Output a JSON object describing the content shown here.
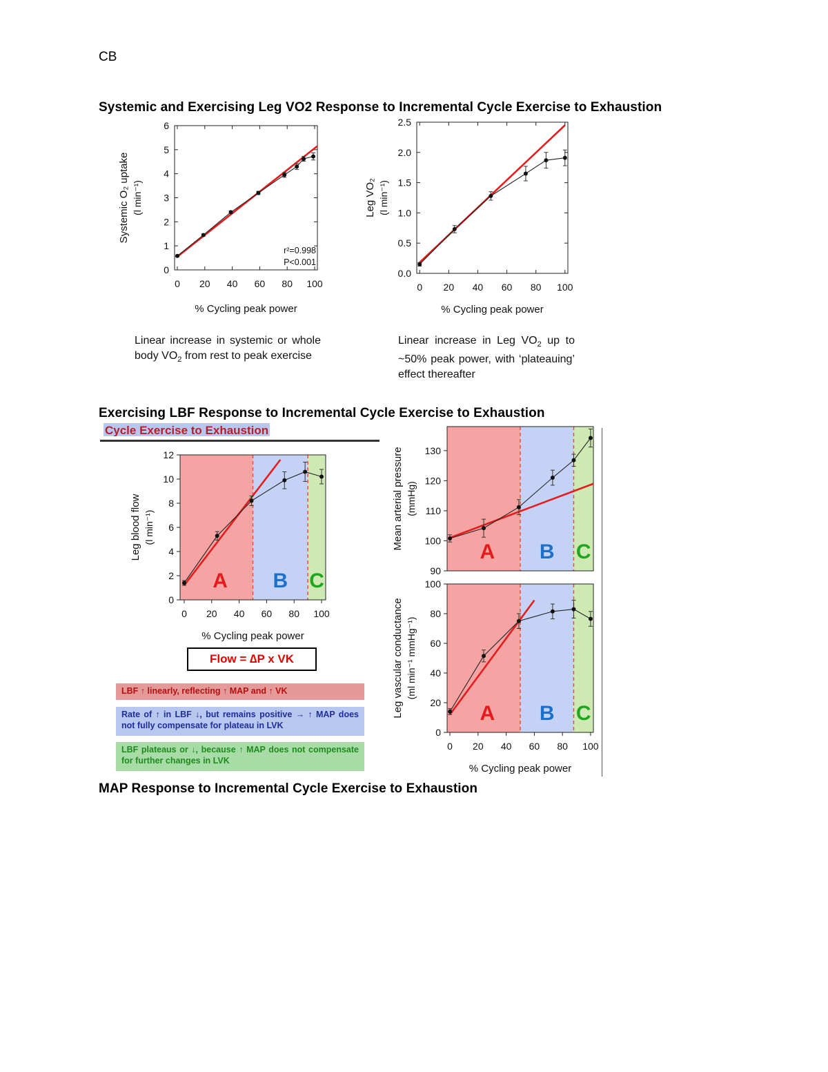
{
  "header": {
    "initials": "CB"
  },
  "headings": {
    "vo2": "Systemic and Exercising Leg VO2 Response to Incremental Cycle Exercise to Exhaustion",
    "lbf": "Exercising LBF Response to Incremental Cycle Exercise to Exhaustion",
    "map": "MAP Response to Incremental Cycle Exercise to Exhaustion"
  },
  "captions": {
    "systemic_pre": "Linear increase in systemic or whole body VO",
    "systemic_sub": "2",
    "systemic_post": " from rest to peak exercise",
    "leg_pre": "Linear increase in Leg VO",
    "leg_sub": "2",
    "leg_post": " up to ~50% peak power, with ‘plateauing’ effect thereafter"
  },
  "slide": {
    "title_fragment": "Cycle Exercise to Exhaustion",
    "equation": "Flow = ∆P x VK",
    "band_a": "LBF ↑ linearly, reflecting ↑ MAP and ↑ VK",
    "band_b": "Rate of ↑ in LBF ↓, but remains positive → ↑ MAP does not fully compensate for plateau in LVK",
    "band_c": "LBF plateaus or ↓, because ↑ MAP does not compensate for further changes in LVK"
  },
  "colors": {
    "fit_line": "#e31d1d",
    "data_line": "#222222",
    "zone_a": "#f6a3a3",
    "zone_b": "#c4d3f5",
    "zone_c": "#cfe9b4",
    "zone_label_a": "#e21b1b",
    "zone_label_b": "#1d70c9",
    "zone_label_c": "#1fa61f"
  },
  "chart_data": [
    {
      "id": "systemic",
      "type": "line",
      "xlabel": "% Cycling peak power",
      "ylabel_line1": "Systemic O₂ uptake",
      "ylabel_line2": "(l min⁻¹)",
      "xlim": [
        -2,
        102
      ],
      "ylim": [
        0,
        6
      ],
      "xticks": [
        "0",
        "20",
        "40",
        "60",
        "80",
        "100"
      ],
      "xtick_values": [
        0,
        20,
        40,
        60,
        80,
        100
      ],
      "yticks": [
        "0",
        "1",
        "2",
        "3",
        "4",
        "5",
        "6"
      ],
      "ytick_values": [
        0,
        1,
        2,
        3,
        4,
        5,
        6
      ],
      "series": [
        {
          "name": "Systemic VO2",
          "x": [
            0,
            19,
            39,
            59,
            78,
            87,
            92,
            99
          ],
          "y": [
            0.58,
            1.45,
            2.4,
            3.2,
            3.95,
            4.3,
            4.62,
            4.72
          ],
          "err": [
            0.03,
            0.05,
            0.05,
            0.07,
            0.1,
            0.12,
            0.1,
            0.15
          ]
        }
      ],
      "fit": {
        "x": [
          0,
          102
        ],
        "y": [
          0.55,
          5.15
        ]
      },
      "stats_line1": "r²=0.998",
      "stats_line2": "P<0.001"
    },
    {
      "id": "leg_vo2",
      "type": "line",
      "xlabel": "% Cycling peak power",
      "ylabel_line1": "Leg VO₂",
      "ylabel_line2": "(l min⁻¹)",
      "xlim": [
        -2,
        102
      ],
      "ylim": [
        0,
        2.5
      ],
      "xticks": [
        "0",
        "20",
        "40",
        "60",
        "80",
        "100"
      ],
      "xtick_values": [
        0,
        20,
        40,
        60,
        80,
        100
      ],
      "yticks": [
        "0.0",
        "0.5",
        "1.0",
        "1.5",
        "2.0",
        "2.5"
      ],
      "ytick_values": [
        0,
        0.5,
        1.0,
        1.5,
        2.0,
        2.5
      ],
      "series": [
        {
          "name": "Leg VO2",
          "x": [
            0,
            24,
            49,
            73,
            87,
            100
          ],
          "y": [
            0.15,
            0.73,
            1.28,
            1.65,
            1.87,
            1.91
          ],
          "err": [
            0.03,
            0.06,
            0.07,
            0.12,
            0.13,
            0.13
          ]
        }
      ],
      "fit": {
        "x": [
          0,
          100
        ],
        "y": [
          0.18,
          2.45
        ]
      }
    },
    {
      "id": "lbf",
      "type": "line",
      "xlabel": "% Cycling peak power",
      "ylabel_line1": "Leg blood flow",
      "ylabel_line2": "(l min⁻¹)",
      "xlim": [
        -3,
        103
      ],
      "ylim": [
        0,
        12
      ],
      "xticks": [
        "0",
        "20",
        "40",
        "60",
        "80",
        "100"
      ],
      "xtick_values": [
        0,
        20,
        40,
        60,
        80,
        100
      ],
      "yticks": [
        "0",
        "2",
        "4",
        "6",
        "8",
        "10",
        "12"
      ],
      "ytick_values": [
        0,
        2,
        4,
        6,
        8,
        10,
        12
      ],
      "zones": [
        {
          "label": "A",
          "from": -3,
          "to": 50
        },
        {
          "label": "B",
          "from": 50,
          "to": 90
        },
        {
          "label": "C",
          "from": 90,
          "to": 103
        }
      ],
      "series": [
        {
          "name": "LBF",
          "x": [
            0,
            24,
            49,
            73,
            88,
            100
          ],
          "y": [
            1.4,
            5.3,
            8.2,
            9.9,
            10.6,
            10.2
          ],
          "err": [
            0.2,
            0.35,
            0.4,
            0.7,
            0.8,
            0.6
          ]
        }
      ],
      "fit": {
        "x": [
          0,
          70
        ],
        "y": [
          1.2,
          11.6
        ]
      }
    },
    {
      "id": "map",
      "type": "line",
      "xlabel": "",
      "ylabel_line1": "Mean arterial pressure",
      "ylabel_line2": "(mmHg)",
      "xlim": [
        -2,
        102
      ],
      "ylim": [
        90,
        138
      ],
      "xticks": [],
      "xtick_values": [],
      "yticks": [
        "90",
        "100",
        "110",
        "120",
        "130"
      ],
      "ytick_values": [
        90,
        100,
        110,
        120,
        130
      ],
      "zones": [
        {
          "label": "A",
          "from": -2,
          "to": 50
        },
        {
          "label": "B",
          "from": 50,
          "to": 88
        },
        {
          "label": "C",
          "from": 88,
          "to": 102
        }
      ],
      "series": [
        {
          "name": "MAP",
          "x": [
            0,
            24,
            49,
            73,
            88,
            100
          ],
          "y": [
            100.8,
            104.2,
            111.2,
            121,
            126.8,
            134.2
          ],
          "err": [
            1.2,
            3,
            2.5,
            2.5,
            2,
            3
          ]
        }
      ],
      "fit": {
        "x": [
          0,
          102
        ],
        "y": [
          101,
          119
        ]
      }
    },
    {
      "id": "lvc",
      "type": "line",
      "xlabel": "% Cycling peak power",
      "ylabel_line1": "Leg vascular conductance",
      "ylabel_line2": "(ml min⁻¹ mmHg⁻¹)",
      "xlim": [
        -2,
        102
      ],
      "ylim": [
        0,
        100
      ],
      "xticks": [
        "0",
        "20",
        "40",
        "60",
        "80",
        "100"
      ],
      "xtick_values": [
        0,
        20,
        40,
        60,
        80,
        100
      ],
      "yticks": [
        "0",
        "20",
        "40",
        "60",
        "80",
        "100"
      ],
      "ytick_values": [
        0,
        20,
        40,
        60,
        80,
        100
      ],
      "zones": [
        {
          "label": "A",
          "from": -2,
          "to": 50
        },
        {
          "label": "B",
          "from": 50,
          "to": 88
        },
        {
          "label": "C",
          "from": 88,
          "to": 102
        }
      ],
      "series": [
        {
          "name": "LVC",
          "x": [
            0,
            24,
            49,
            73,
            88,
            100
          ],
          "y": [
            14,
            51.5,
            75,
            81.5,
            83,
            76.5
          ],
          "err": [
            2,
            4,
            5,
            5,
            6,
            5
          ]
        }
      ],
      "fit": {
        "x": [
          0,
          60
        ],
        "y": [
          12,
          89
        ]
      }
    }
  ]
}
